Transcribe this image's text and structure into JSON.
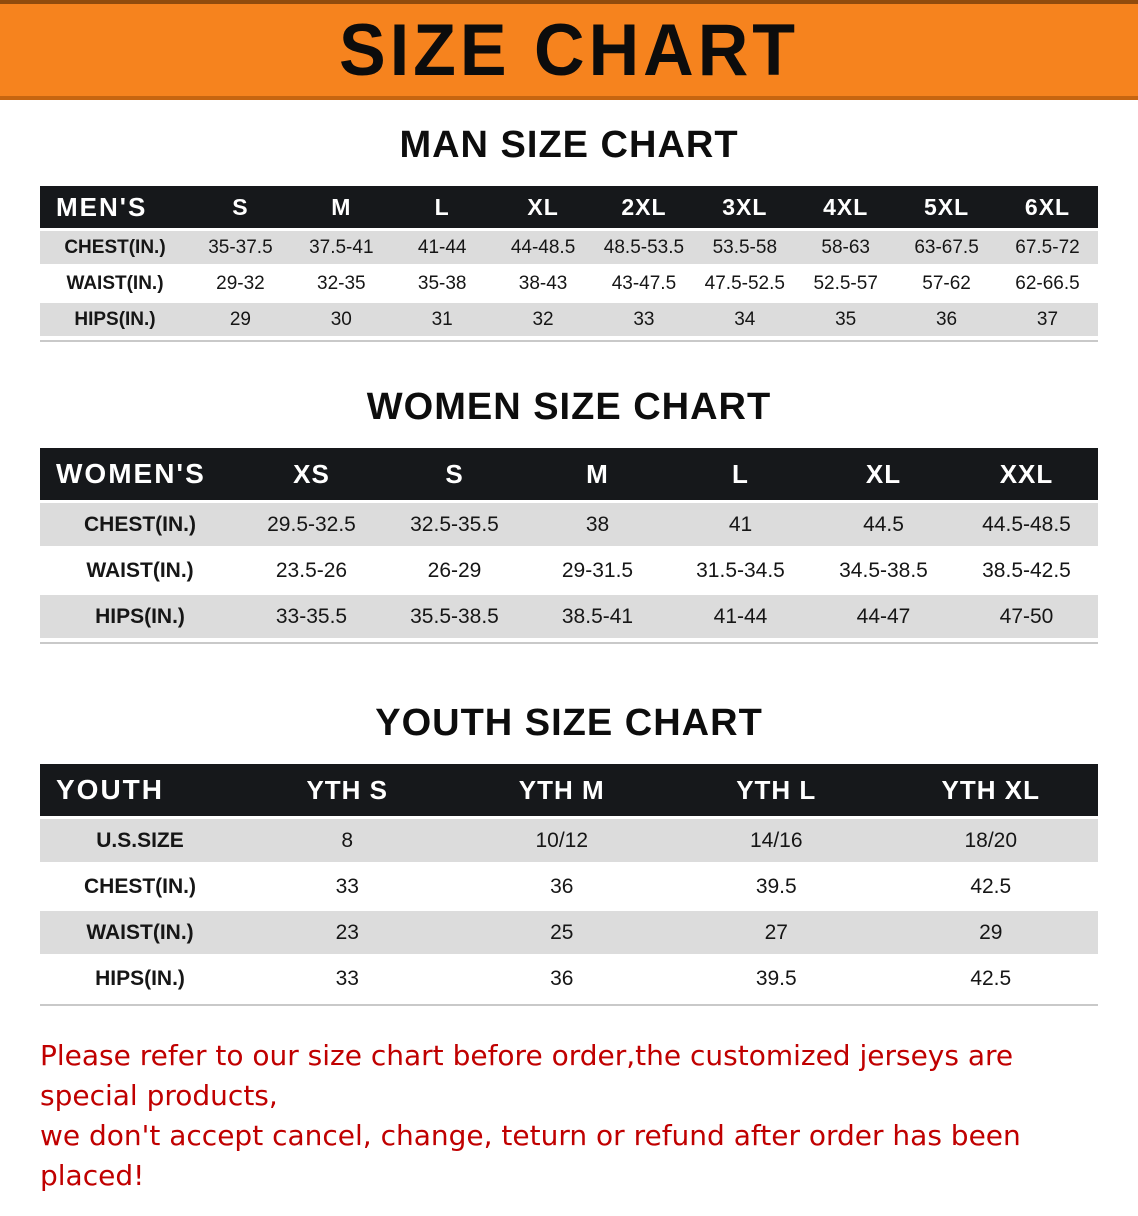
{
  "banner": {
    "title": "SIZE CHART"
  },
  "colors": {
    "banner_orange": "#F6831E",
    "header_black": "#16181b",
    "row_gray": "#dcdcdc",
    "footer_red": "#c00000"
  },
  "chart_data": [
    {
      "type": "table",
      "title": "MAN SIZE CHART",
      "header_label": "MEN'S",
      "columns": [
        "S",
        "M",
        "L",
        "XL",
        "2XL",
        "3XL",
        "4XL",
        "5XL",
        "6XL"
      ],
      "rows": [
        {
          "label": "CHEST(IN.)",
          "values": [
            "35-37.5",
            "37.5-41",
            "41-44",
            "44-48.5",
            "48.5-53.5",
            "53.5-58",
            "58-63",
            "63-67.5",
            "67.5-72"
          ]
        },
        {
          "label": "WAIST(IN.)",
          "values": [
            "29-32",
            "32-35",
            "35-38",
            "38-43",
            "43-47.5",
            "47.5-52.5",
            "52.5-57",
            "57-62",
            "62-66.5"
          ]
        },
        {
          "label": "HIPS(IN.)",
          "values": [
            "29",
            "30",
            "31",
            "32",
            "33",
            "34",
            "35",
            "36",
            "37"
          ]
        }
      ]
    },
    {
      "type": "table",
      "title": "WOMEN SIZE CHART",
      "header_label": "WOMEN'S",
      "columns": [
        "XS",
        "S",
        "M",
        "L",
        "XL",
        "XXL"
      ],
      "rows": [
        {
          "label": "CHEST(IN.)",
          "values": [
            "29.5-32.5",
            "32.5-35.5",
            "38",
            "41",
            "44.5",
            "44.5-48.5"
          ]
        },
        {
          "label": "WAIST(IN.)",
          "values": [
            "23.5-26",
            "26-29",
            "29-31.5",
            "31.5-34.5",
            "34.5-38.5",
            "38.5-42.5"
          ]
        },
        {
          "label": "HIPS(IN.)",
          "values": [
            "33-35.5",
            "35.5-38.5",
            "38.5-41",
            "41-44",
            "44-47",
            "47-50"
          ]
        }
      ]
    },
    {
      "type": "table",
      "title": "YOUTH SIZE CHART",
      "header_label": "YOUTH",
      "columns": [
        "YTH S",
        "YTH M",
        "YTH L",
        "YTH XL"
      ],
      "rows": [
        {
          "label": "U.S.SIZE",
          "values": [
            "8",
            "10/12",
            "14/16",
            "18/20"
          ]
        },
        {
          "label": "CHEST(IN.)",
          "values": [
            "33",
            "36",
            "39.5",
            "42.5"
          ]
        },
        {
          "label": "WAIST(IN.)",
          "values": [
            "23",
            "25",
            "27",
            "29"
          ]
        },
        {
          "label": "HIPS(IN.)",
          "values": [
            "33",
            "36",
            "39.5",
            "42.5"
          ]
        }
      ]
    }
  ],
  "footer": {
    "lines": [
      "Please refer to our size chart before order,the customized jerseys are special products,",
      "we don't accept cancel, change, teturn or refund after order has been placed!"
    ]
  }
}
